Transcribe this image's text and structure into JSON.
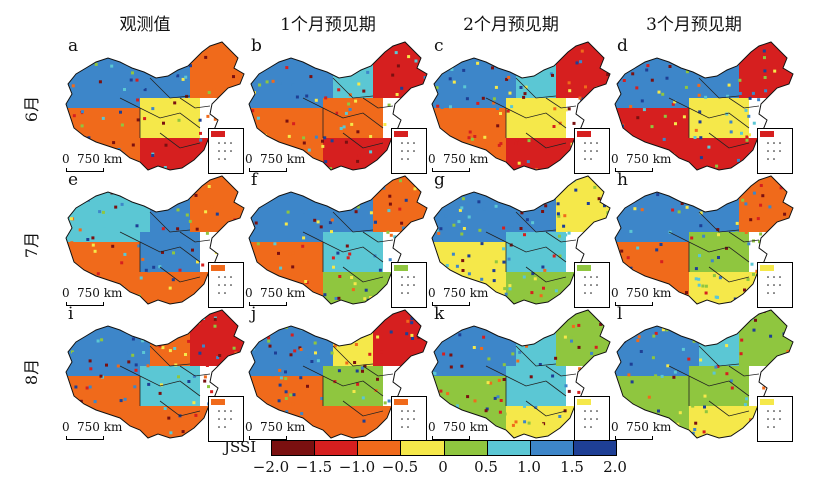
{
  "columns": [
    "观测值",
    "1个月预见期",
    "2个月预见期",
    "3个月预见期"
  ],
  "rows": [
    "6月",
    "7月",
    "8月"
  ],
  "panel_letters": [
    "a",
    "b",
    "c",
    "d",
    "e",
    "f",
    "g",
    "h",
    "i",
    "j",
    "k",
    "l"
  ],
  "scale": {
    "zero": "0",
    "distance": "750 km"
  },
  "legend": {
    "title": "JSSI",
    "ticks": [
      "−2.0",
      "−1.5",
      "−1.0",
      "−0.5",
      "0",
      "0.5",
      "1.0",
      "1.5",
      "2.0"
    ],
    "colors": [
      "#7a1010",
      "#d61f1f",
      "#f06a1b",
      "#f5e84a",
      "#8fc63f",
      "#5bc7d4",
      "#3d86c9",
      "#1e3f95"
    ]
  }
}
